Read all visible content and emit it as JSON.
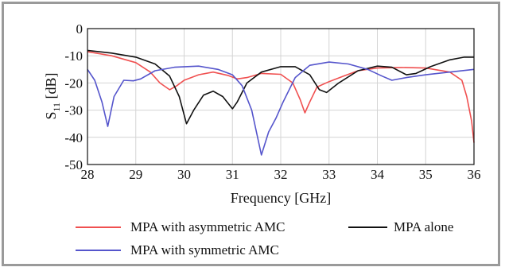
{
  "chart_data": {
    "type": "line",
    "xlabel": "Frequency [GHz]",
    "ylabel_main": "S",
    "ylabel_sub": "11",
    "ylabel_unit": " [dB]",
    "xlim": [
      28,
      36
    ],
    "ylim": [
      -50,
      0
    ],
    "xticks": [
      "28",
      "29",
      "30",
      "31",
      "32",
      "33",
      "34",
      "35",
      "36"
    ],
    "yticks": [
      "0",
      "-10",
      "-20",
      "-30",
      "-40",
      "-50"
    ],
    "grid": true,
    "legend_placement": "bottom",
    "series": [
      {
        "name": "MPA with asymmetric AMC",
        "color": "#f05050",
        "points": [
          [
            28,
            -8.5
          ],
          [
            28.5,
            -10
          ],
          [
            29,
            -12.5
          ],
          [
            29.3,
            -16
          ],
          [
            29.5,
            -20
          ],
          [
            29.7,
            -22.5
          ],
          [
            29.85,
            -21
          ],
          [
            30,
            -19
          ],
          [
            30.3,
            -17
          ],
          [
            30.6,
            -16
          ],
          [
            30.9,
            -17.2
          ],
          [
            31.1,
            -18.5
          ],
          [
            31.3,
            -18
          ],
          [
            31.6,
            -16.5
          ],
          [
            32,
            -16.8
          ],
          [
            32.25,
            -20
          ],
          [
            32.4,
            -26
          ],
          [
            32.5,
            -31
          ],
          [
            32.6,
            -27
          ],
          [
            32.75,
            -21.5
          ],
          [
            33,
            -19.5
          ],
          [
            33.3,
            -17.5
          ],
          [
            33.6,
            -15.5
          ],
          [
            34,
            -14.5
          ],
          [
            34.5,
            -14.3
          ],
          [
            35,
            -14.5
          ],
          [
            35.5,
            -16
          ],
          [
            35.75,
            -19
          ],
          [
            35.85,
            -25
          ],
          [
            35.95,
            -34
          ],
          [
            36,
            -42
          ]
        ]
      },
      {
        "name": "MPA alone",
        "color": "#111111",
        "points": [
          [
            28,
            -8
          ],
          [
            28.5,
            -9
          ],
          [
            29,
            -10.5
          ],
          [
            29.4,
            -13
          ],
          [
            29.7,
            -17.5
          ],
          [
            29.9,
            -25
          ],
          [
            30.05,
            -35
          ],
          [
            30.2,
            -30
          ],
          [
            30.4,
            -24.5
          ],
          [
            30.6,
            -23
          ],
          [
            30.8,
            -25
          ],
          [
            31,
            -29.5
          ],
          [
            31.1,
            -27
          ],
          [
            31.3,
            -20
          ],
          [
            31.6,
            -16
          ],
          [
            32,
            -14
          ],
          [
            32.3,
            -14
          ],
          [
            32.6,
            -17
          ],
          [
            32.8,
            -22.5
          ],
          [
            32.95,
            -23.5
          ],
          [
            33.2,
            -20
          ],
          [
            33.6,
            -15.5
          ],
          [
            34,
            -13.8
          ],
          [
            34.3,
            -14.2
          ],
          [
            34.6,
            -17
          ],
          [
            34.8,
            -16.5
          ],
          [
            35.1,
            -14
          ],
          [
            35.5,
            -11.5
          ],
          [
            35.8,
            -10.5
          ],
          [
            36,
            -10.5
          ]
        ]
      },
      {
        "name": "MPA with symmetric AMC",
        "color": "#5555cc",
        "points": [
          [
            28,
            -15
          ],
          [
            28.15,
            -19
          ],
          [
            28.3,
            -27
          ],
          [
            28.42,
            -36
          ],
          [
            28.55,
            -25
          ],
          [
            28.75,
            -19
          ],
          [
            28.95,
            -19.2
          ],
          [
            29.1,
            -18.5
          ],
          [
            29.4,
            -15.5
          ],
          [
            29.8,
            -14.2
          ],
          [
            30.3,
            -13.8
          ],
          [
            30.7,
            -15
          ],
          [
            31,
            -17
          ],
          [
            31.2,
            -21
          ],
          [
            31.4,
            -30
          ],
          [
            31.6,
            -46.5
          ],
          [
            31.75,
            -38
          ],
          [
            31.9,
            -33
          ],
          [
            32.05,
            -27
          ],
          [
            32.3,
            -18
          ],
          [
            32.6,
            -13.5
          ],
          [
            33,
            -12.3
          ],
          [
            33.4,
            -13
          ],
          [
            33.8,
            -15
          ],
          [
            34.1,
            -17.5
          ],
          [
            34.3,
            -19
          ],
          [
            34.6,
            -18
          ],
          [
            35,
            -17
          ],
          [
            35.5,
            -16
          ],
          [
            36,
            -15
          ]
        ]
      }
    ]
  }
}
